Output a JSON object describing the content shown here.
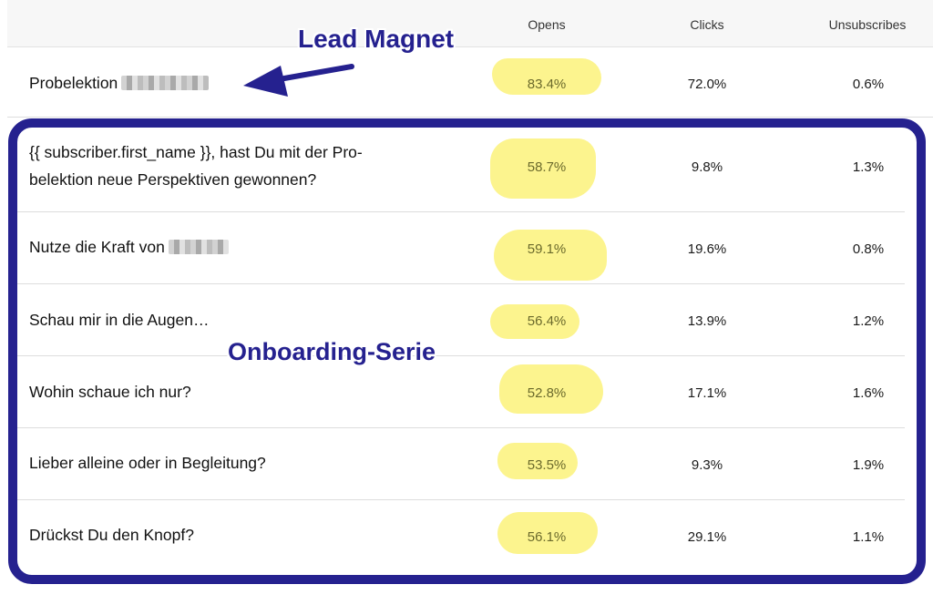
{
  "columns": {
    "opens": "Opens",
    "clicks": "Clicks",
    "unsubscribes": "Unsubscribes"
  },
  "lead_row": {
    "subject": "Probelektion",
    "opens": "83.4%",
    "clicks": "72.0%",
    "unsubscribes": "0.6%"
  },
  "rows": [
    {
      "subject_line1": "{{ subscriber.first_name }}, hast Du mit der Pro-",
      "subject_line2": "belektion neue Perspektiven gewonnen?",
      "opens": "58.7%",
      "clicks": "9.8%",
      "unsubscribes": "1.3%"
    },
    {
      "subject": "Nutze die Kraft von",
      "opens": "59.1%",
      "clicks": "19.6%",
      "unsubscribes": "0.8%"
    },
    {
      "subject": "Schau mir in die Augen…",
      "opens": "56.4%",
      "clicks": "13.9%",
      "unsubscribes": "1.2%"
    },
    {
      "subject": "Wohin schaue ich nur?",
      "opens": "52.8%",
      "clicks": "17.1%",
      "unsubscribes": "1.6%"
    },
    {
      "subject": "Lieber alleine oder in Begleitung?",
      "opens": "53.5%",
      "clicks": "9.3%",
      "unsubscribes": "1.9%"
    },
    {
      "subject": "Drückst Du den Knopf?",
      "opens": "56.1%",
      "clicks": "29.1%",
      "unsubscribes": "1.1%"
    }
  ],
  "annotations": {
    "lead_magnet": "Lead Magnet",
    "onboarding": "Onboarding-Serie"
  },
  "colors": {
    "annotation": "#25218f",
    "highlight": "#fbf27a"
  }
}
